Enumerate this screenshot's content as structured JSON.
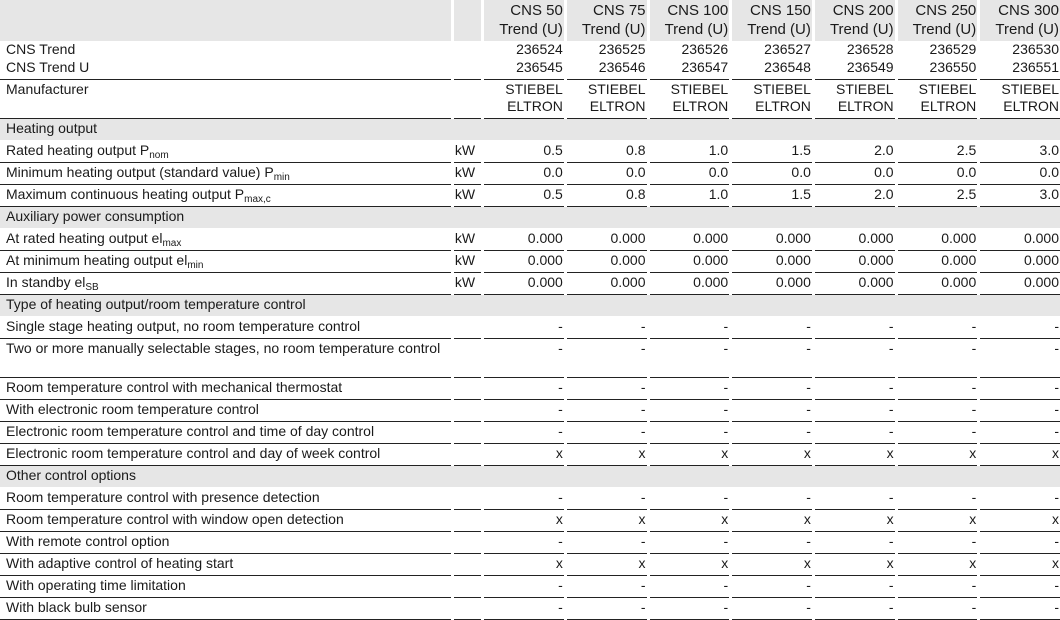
{
  "header": {
    "models": [
      "CNS 50 Trend (U)",
      "CNS 75 Trend (U)",
      "CNS 100 Trend (U)",
      "CNS 150 Trend (U)",
      "CNS 200 Trend (U)",
      "CNS 250 Trend (U)",
      "CNS 300 Trend (U)"
    ]
  },
  "rows": [
    {
      "type": "top",
      "label": "CNS Trend",
      "unit": "",
      "values": [
        "236524",
        "236525",
        "236526",
        "236527",
        "236528",
        "236529",
        "236530"
      ]
    },
    {
      "type": "row",
      "label": "CNS Trend U",
      "unit": "",
      "values": [
        "236545",
        "236546",
        "236547",
        "236548",
        "236549",
        "236550",
        "236551"
      ]
    },
    {
      "type": "row two",
      "label": "Manufacturer",
      "unit": "",
      "values": [
        "STIEBEL ELTRON",
        "STIEBEL ELTRON",
        "STIEBEL ELTRON",
        "STIEBEL ELTRON",
        "STIEBEL ELTRON",
        "STIEBEL ELTRON",
        "STIEBEL ELTRON"
      ]
    },
    {
      "type": "sect",
      "label": "Heating output"
    },
    {
      "type": "row",
      "label": "Rated heating output P",
      "sub": "nom",
      "unit": "kW",
      "values": [
        "0.5",
        "0.8",
        "1.0",
        "1.5",
        "2.0",
        "2.5",
        "3.0"
      ]
    },
    {
      "type": "row",
      "label": "Minimum heating output (standard value) P",
      "sub": "min",
      "unit": "kW",
      "values": [
        "0.0",
        "0.0",
        "0.0",
        "0.0",
        "0.0",
        "0.0",
        "0.0"
      ]
    },
    {
      "type": "row",
      "label": "Maximum continuous heating output P",
      "sub": "max,c",
      "unit": "kW",
      "values": [
        "0.5",
        "0.8",
        "1.0",
        "1.5",
        "2.0",
        "2.5",
        "3.0"
      ]
    },
    {
      "type": "sect",
      "label": "Auxiliary power consumption"
    },
    {
      "type": "row",
      "label": "At rated heating output el",
      "sub": "max",
      "unit": "kW",
      "values": [
        "0.000",
        "0.000",
        "0.000",
        "0.000",
        "0.000",
        "0.000",
        "0.000"
      ]
    },
    {
      "type": "row",
      "label": "At minimum heating output el",
      "sub": "min",
      "unit": "kW",
      "values": [
        "0.000",
        "0.000",
        "0.000",
        "0.000",
        "0.000",
        "0.000",
        "0.000"
      ]
    },
    {
      "type": "row",
      "label": "In standby el",
      "sub": "SB",
      "unit": "kW",
      "values": [
        "0.000",
        "0.000",
        "0.000",
        "0.000",
        "0.000",
        "0.000",
        "0.000"
      ]
    },
    {
      "type": "sect",
      "label": "Type of heating output/room temperature control"
    },
    {
      "type": "row",
      "label": "Single stage heating output, no room temperature control",
      "unit": "",
      "values": [
        "-",
        "-",
        "-",
        "-",
        "-",
        "-",
        "-"
      ]
    },
    {
      "type": "row two",
      "label": "Two or more manually selectable stages, no room temperature control",
      "unit": "",
      "values": [
        "-",
        "-",
        "-",
        "-",
        "-",
        "-",
        "-"
      ]
    },
    {
      "type": "row",
      "label": "Room temperature control with mechanical thermostat",
      "unit": "",
      "values": [
        "-",
        "-",
        "-",
        "-",
        "-",
        "-",
        "-"
      ]
    },
    {
      "type": "row",
      "label": "With electronic room temperature control",
      "unit": "",
      "values": [
        "-",
        "-",
        "-",
        "-",
        "-",
        "-",
        "-"
      ]
    },
    {
      "type": "row",
      "label": "Electronic room temperature control and time of day control",
      "unit": "",
      "values": [
        "-",
        "-",
        "-",
        "-",
        "-",
        "-",
        "-"
      ]
    },
    {
      "type": "row",
      "label": "Electronic room temperature control and day of week control",
      "unit": "",
      "values": [
        "x",
        "x",
        "x",
        "x",
        "x",
        "x",
        "x"
      ]
    },
    {
      "type": "sect",
      "label": "Other control options"
    },
    {
      "type": "row",
      "label": "Room temperature control with presence detection",
      "unit": "",
      "values": [
        "-",
        "-",
        "-",
        "-",
        "-",
        "-",
        "-"
      ]
    },
    {
      "type": "row",
      "label": "Room temperature control with window open detection",
      "unit": "",
      "values": [
        "x",
        "x",
        "x",
        "x",
        "x",
        "x",
        "x"
      ]
    },
    {
      "type": "row",
      "label": "With remote control option",
      "unit": "",
      "values": [
        "-",
        "-",
        "-",
        "-",
        "-",
        "-",
        "-"
      ]
    },
    {
      "type": "row",
      "label": "With adaptive control of heating start",
      "unit": "",
      "values": [
        "x",
        "x",
        "x",
        "x",
        "x",
        "x",
        "x"
      ]
    },
    {
      "type": "row",
      "label": "With operating time limitation",
      "unit": "",
      "values": [
        "-",
        "-",
        "-",
        "-",
        "-",
        "-",
        "-"
      ]
    },
    {
      "type": "row",
      "label": "With black bulb sensor",
      "unit": "",
      "values": [
        "-",
        "-",
        "-",
        "-",
        "-",
        "-",
        "-"
      ]
    }
  ]
}
